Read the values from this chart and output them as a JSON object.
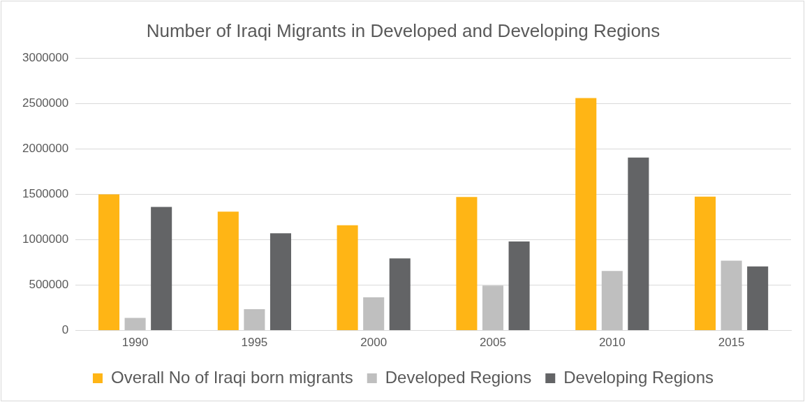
{
  "chart_data": {
    "type": "bar",
    "title": "Number of Iraqi Migrants in Developed and Developing Regions",
    "categories": [
      "1990",
      "1995",
      "2000",
      "2005",
      "2010",
      "2015"
    ],
    "series": [
      {
        "name": "Overall No of Iraqi born migrants",
        "color": "#ffb515",
        "values": [
          1500000,
          1310000,
          1160000,
          1470000,
          2560000,
          1475000
        ]
      },
      {
        "name": "Developed Regions",
        "color": "#bfbfbf",
        "values": [
          140000,
          235000,
          365000,
          495000,
          655000,
          770000
        ]
      },
      {
        "name": "Developing Regions",
        "color": "#636466",
        "values": [
          1360000,
          1070000,
          795000,
          980000,
          1905000,
          705000
        ]
      }
    ],
    "ylim": [
      0,
      3000000
    ],
    "yticks": [
      0,
      500000,
      1000000,
      1500000,
      2000000,
      2500000,
      3000000
    ],
    "grid": "y",
    "legend": "bottom"
  }
}
